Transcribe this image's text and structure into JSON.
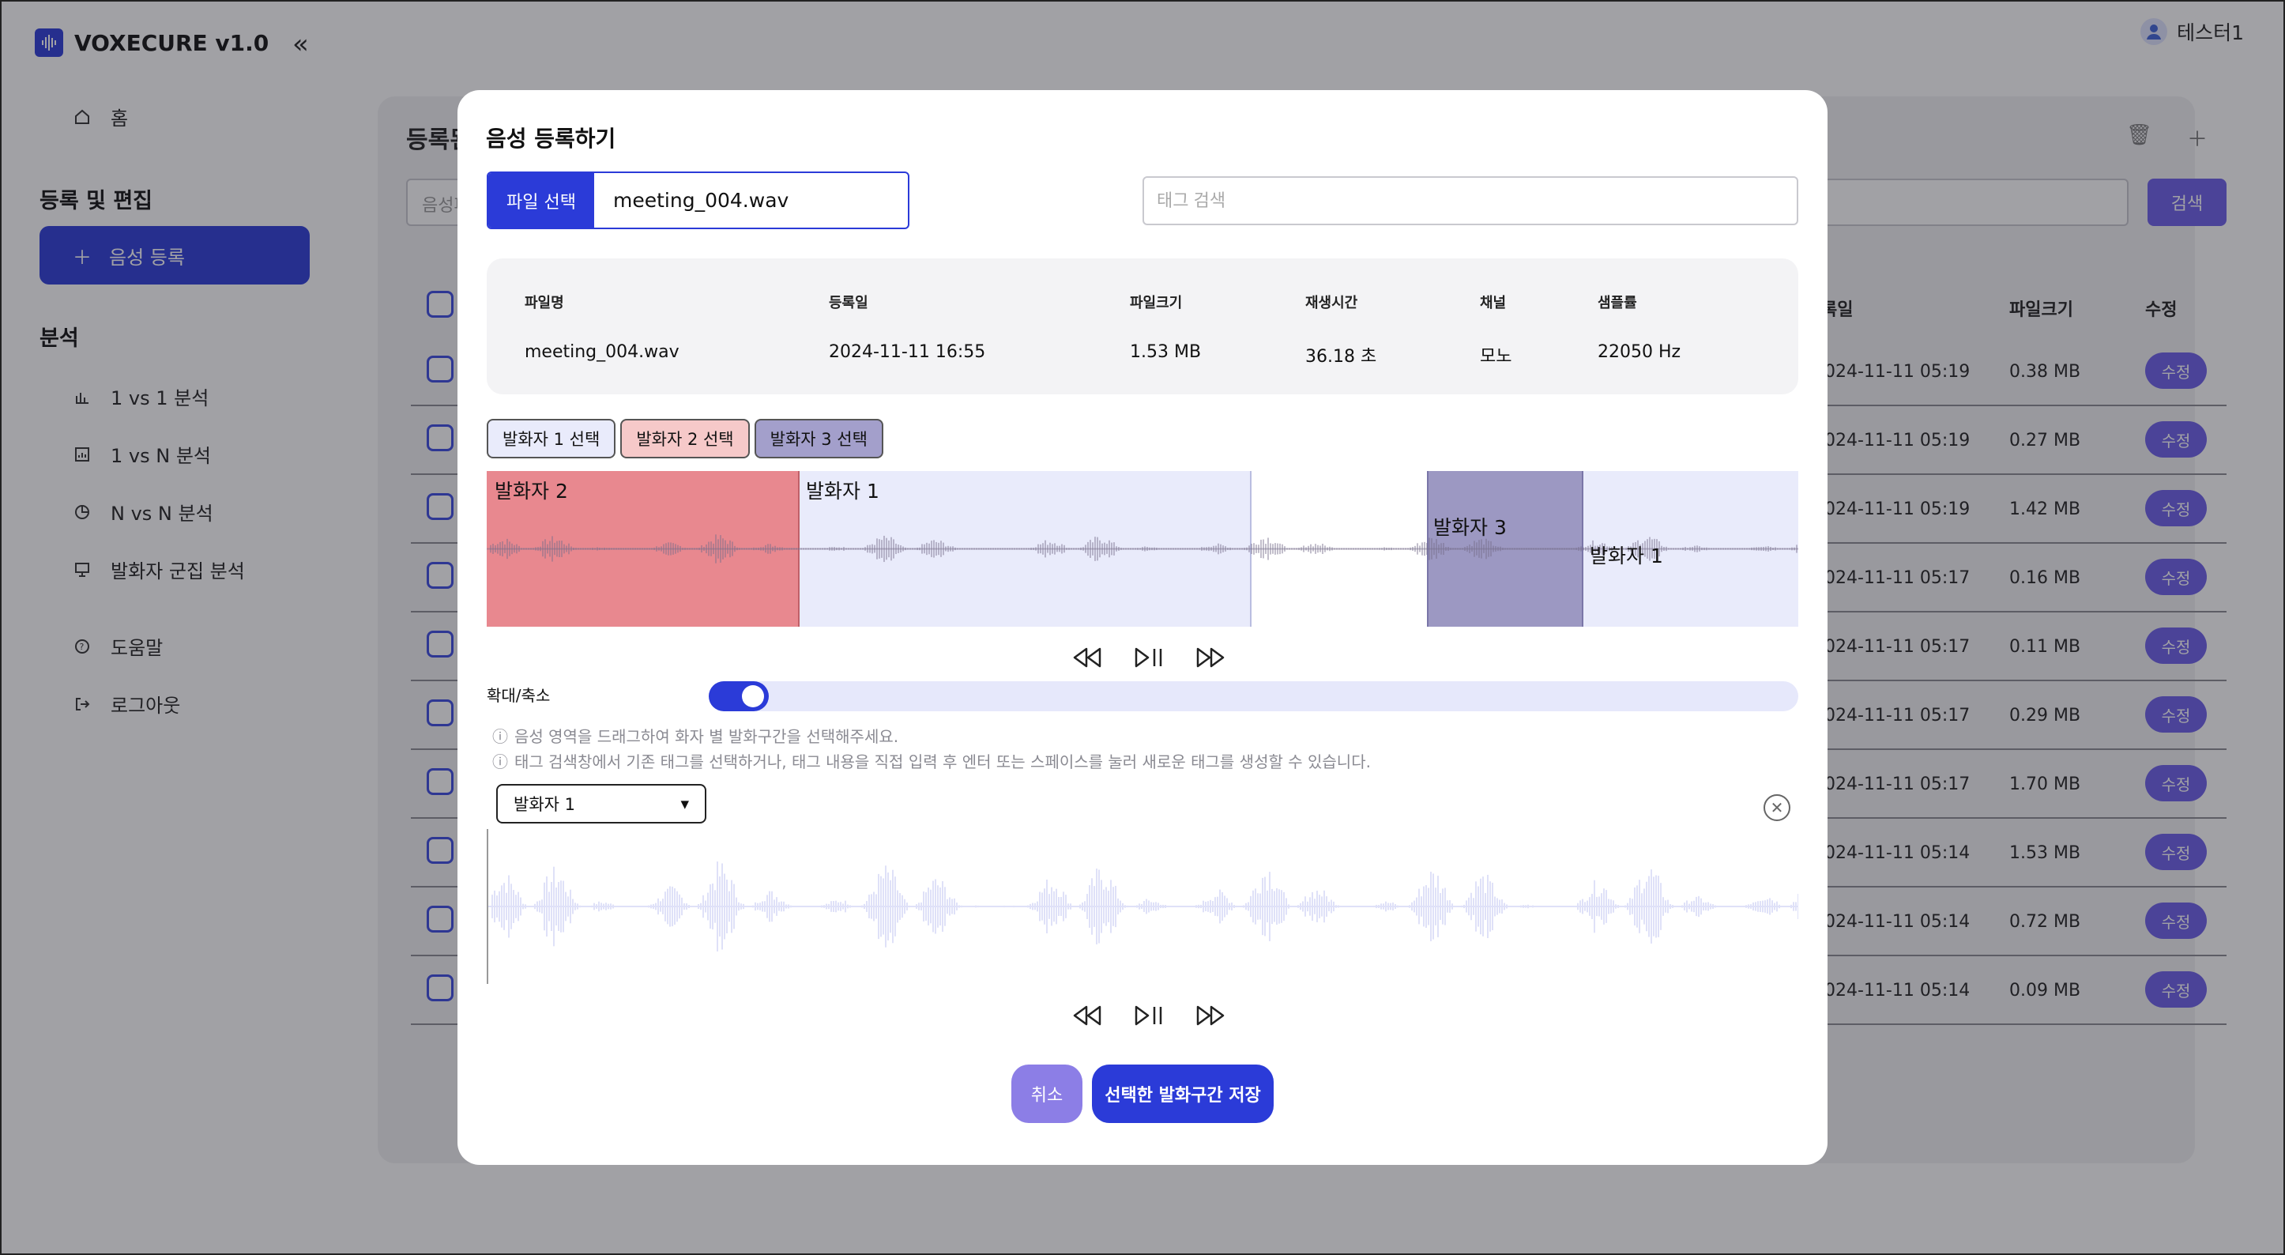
{
  "app": {
    "title": "VOXECURE v1.0",
    "user_name": "테스터1"
  },
  "sidebar": {
    "home_label": "홈",
    "section_edit": "등록 및 편집",
    "primary_label": "음성 등록",
    "section_analysis": "분석",
    "items": [
      {
        "label": "1 vs 1 분석",
        "icon": "bar-chart-icon"
      },
      {
        "label": "1 vs N 분석",
        "icon": "report-icon"
      },
      {
        "label": "N vs N 분석",
        "icon": "pie-chart-icon"
      },
      {
        "label": "발화자 군집 분석",
        "icon": "presentation-icon"
      }
    ],
    "help_label": "도움말",
    "logout_label": "로그아웃"
  },
  "background": {
    "title_partial": "등록된",
    "search_placeholder_partial": "음성파",
    "search_button": "검색",
    "columns": {
      "date": "록일",
      "size": "파일크기",
      "edit": "수정"
    },
    "rows": [
      {
        "date": "024-11-11 05:19",
        "size": "0.38 MB",
        "edit": "수정"
      },
      {
        "date": "024-11-11 05:19",
        "size": "0.27 MB",
        "edit": "수정"
      },
      {
        "date": "024-11-11 05:19",
        "size": "1.42 MB",
        "edit": "수정"
      },
      {
        "date": "024-11-11 05:17",
        "size": "0.16 MB",
        "edit": "수정"
      },
      {
        "date": "024-11-11 05:17",
        "size": "0.11 MB",
        "edit": "수정"
      },
      {
        "date": "024-11-11 05:17",
        "size": "0.29 MB",
        "edit": "수정"
      },
      {
        "date": "024-11-11 05:17",
        "size": "1.70 MB",
        "edit": "수정"
      },
      {
        "date": "024-11-11 05:14",
        "size": "1.53 MB",
        "edit": "수정"
      },
      {
        "date": "024-11-11 05:14",
        "size": "0.72 MB",
        "edit": "수정"
      },
      {
        "date": "024-11-11 05:14",
        "size": "0.09 MB",
        "edit": "수정"
      }
    ]
  },
  "modal": {
    "title": "음성 등록하기",
    "file_button": "파일 선택",
    "file_name": "meeting_004.wav",
    "tag_search_placeholder": "태그 검색",
    "info": {
      "headers": [
        "파일명",
        "등록일",
        "파일크기",
        "재생시간",
        "채널",
        "샘플률"
      ],
      "values": [
        "meeting_004.wav",
        "2024-11-11 16:55",
        "1.53 MB",
        "36.18 초",
        "모노",
        "22050 Hz"
      ]
    },
    "speaker_buttons": [
      "발화자 1 선택",
      "발화자 2 선택",
      "발화자 3 선택"
    ],
    "segments": [
      {
        "label": "발화자 2",
        "color": "#e8888f"
      },
      {
        "label": "발화자 1",
        "color": "#e9ebfb"
      },
      {
        "label": "발화자 3",
        "color": "#9c98c2"
      },
      {
        "label": "발화자 1",
        "color": "#e9ebfb"
      }
    ],
    "zoom_label": "확대/축소",
    "hints": [
      "음성 영역을 드래그하여 화자 별 발화구간을 선택해주세요.",
      "태그 검색창에서 기존 태그를 선택하거나, 태그 내용을 직접 입력 후 엔터 또는 스페이스를 눌러 새로운 태그를 생성할 수 있습니다."
    ],
    "selected_speaker": "발화자 1",
    "cancel_label": "취소",
    "save_label": "선택한 발화구간 저장"
  },
  "colors": {
    "accent": "#2b3bd8",
    "purple": "#6b5ee8",
    "speaker1": "#e9ebfb",
    "speaker2": "#e8888f",
    "speaker3": "#9c98c2"
  }
}
